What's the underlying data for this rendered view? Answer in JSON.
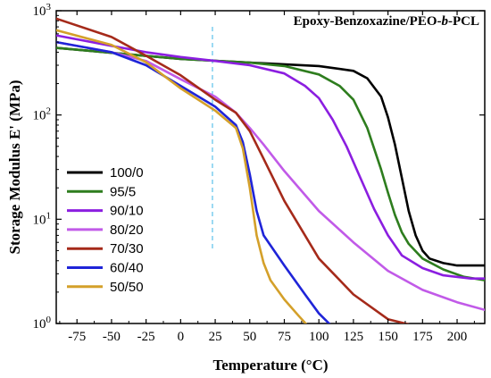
{
  "chart_data": {
    "type": "line",
    "title_parts": [
      "Epoxy-Benzoxazine/PEO-",
      "b",
      "-PCL"
    ],
    "xlabel": "Temperature (°C)",
    "ylabel": "Storage Modulus E' (MPa)",
    "xlim": [
      -90,
      220
    ],
    "ylim": [
      1,
      1000
    ],
    "yscale": "log",
    "x_ticks": [
      -75,
      -50,
      -25,
      0,
      25,
      50,
      75,
      100,
      125,
      150,
      175,
      200
    ],
    "y_ticks": [
      {
        "value": 1,
        "base": "10",
        "exp": "0"
      },
      {
        "value": 10,
        "base": "10",
        "exp": "1"
      },
      {
        "value": 100,
        "base": "10",
        "exp": "2"
      },
      {
        "value": 1000,
        "base": "10",
        "exp": "3"
      }
    ],
    "reference_line_x": 23,
    "legend_position": "left",
    "series": [
      {
        "name": "100/0",
        "color": "#000000",
        "x": [
          -90,
          -50,
          0,
          50,
          100,
          125,
          135,
          145,
          150,
          155,
          160,
          165,
          170,
          175,
          180,
          190,
          200,
          220
        ],
        "y": [
          440,
          395,
          345,
          318,
          295,
          265,
          225,
          150,
          95,
          52,
          25,
          12,
          7,
          5,
          4.2,
          3.8,
          3.6,
          3.6
        ]
      },
      {
        "name": "95/5",
        "color": "#2e7d1e",
        "x": [
          -90,
          -50,
          0,
          50,
          75,
          100,
          115,
          125,
          135,
          145,
          150,
          155,
          160,
          165,
          175,
          190,
          205,
          220
        ],
        "y": [
          440,
          395,
          345,
          318,
          295,
          245,
          190,
          140,
          75,
          30,
          18,
          11,
          7.5,
          5.8,
          4.2,
          3.3,
          2.8,
          2.6
        ]
      },
      {
        "name": "90/10",
        "color": "#8b1ee0",
        "x": [
          -90,
          -50,
          -25,
          0,
          25,
          50,
          75,
          90,
          100,
          110,
          120,
          130,
          140,
          150,
          160,
          175,
          190,
          210,
          220
        ],
        "y": [
          580,
          460,
          400,
          360,
          330,
          300,
          250,
          190,
          145,
          90,
          50,
          25,
          12.5,
          7,
          4.5,
          3.4,
          2.9,
          2.7,
          2.7
        ]
      },
      {
        "name": "80/20",
        "color": "#c15ae8",
        "x": [
          -90,
          -50,
          -25,
          0,
          25,
          40,
          50,
          60,
          75,
          100,
          125,
          150,
          175,
          200,
          220
        ],
        "y": [
          500,
          400,
          330,
          220,
          150,
          105,
          75,
          52,
          29,
          12,
          6,
          3.2,
          2.1,
          1.6,
          1.35
        ]
      },
      {
        "name": "70/30",
        "color": "#a52a1a",
        "x": [
          -90,
          -50,
          -25,
          0,
          25,
          40,
          50,
          60,
          75,
          100,
          125,
          150,
          165
        ],
        "y": [
          840,
          560,
          370,
          240,
          140,
          105,
          70,
          38,
          15,
          4.2,
          1.9,
          1.1,
          0.98
        ]
      },
      {
        "name": "60/40",
        "color": "#1f24d8",
        "x": [
          -90,
          -50,
          -25,
          0,
          25,
          40,
          45,
          50,
          55,
          60,
          75,
          90,
          100,
          108
        ],
        "y": [
          500,
          400,
          300,
          190,
          120,
          80,
          55,
          27,
          12,
          7,
          3.6,
          1.9,
          1.25,
          0.98
        ]
      },
      {
        "name": "50/50",
        "color": "#d4a02a",
        "x": [
          -90,
          -50,
          -25,
          0,
          25,
          40,
          45,
          50,
          55,
          60,
          65,
          75,
          85,
          91
        ],
        "y": [
          650,
          470,
          320,
          180,
          110,
          75,
          48,
          20,
          7,
          3.8,
          2.6,
          1.7,
          1.2,
          0.98
        ]
      }
    ]
  }
}
